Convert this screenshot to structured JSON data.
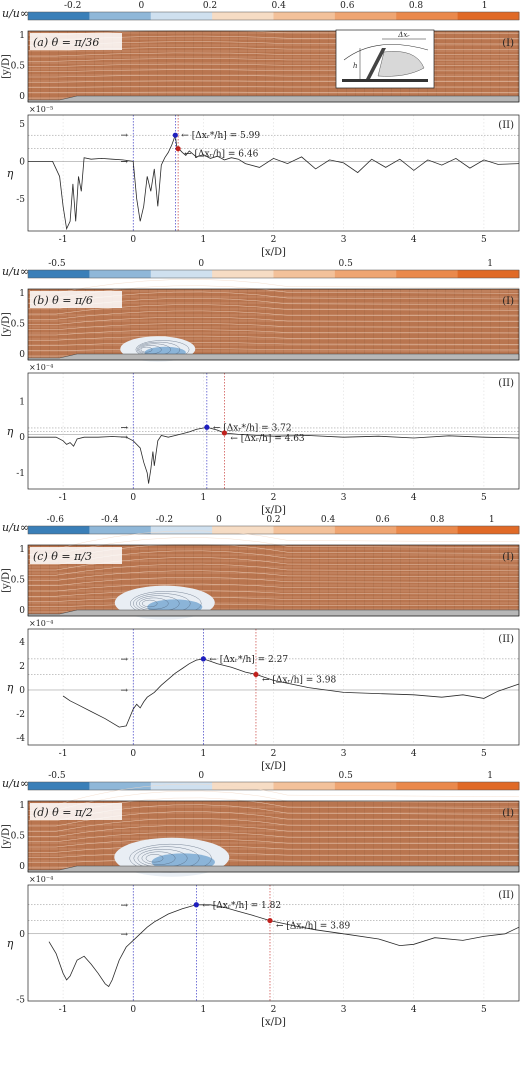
{
  "colorbar_label": "u/u∞",
  "axis_labels": {
    "flow_y": "[y/D]",
    "eta": "η",
    "x": "[x/D]"
  },
  "panel_tags": {
    "top": "(I)",
    "bottom": "(II)"
  },
  "inset_labels": {
    "dx": "Δxᵣ",
    "h": "h"
  },
  "x_ticks": [
    "-1",
    "0",
    "1",
    "2",
    "3",
    "4",
    "5"
  ],
  "flow_y_ticks": [
    "0",
    "0.5",
    "1"
  ],
  "colors": {
    "flow_fill": "#b9754f",
    "ramp": [
      "#3a7fb8",
      "#8fb7d8",
      "#cfe0ef",
      "#f6dcc4",
      "#f3c19a",
      "#efa572",
      "#ea894c",
      "#e06a27"
    ],
    "blue_marker": "#1f1fbf",
    "red_marker": "#c0201c"
  },
  "chart_data": [
    {
      "type": "line",
      "panel": "a",
      "title": "(a) θ = π/36",
      "colorbar_ticks": [
        {
          "label": "-0.2",
          "value": -0.2
        },
        {
          "label": "0",
          "value": 0
        },
        {
          "label": "0.2",
          "value": 0.2
        },
        {
          "label": "0.4",
          "value": 0.4
        },
        {
          "label": "0.6",
          "value": 0.6
        },
        {
          "label": "0.8",
          "value": 0.8
        },
        {
          "label": "1",
          "value": 1
        }
      ],
      "colorbar_range": [
        -0.33,
        1.1
      ],
      "exponent": "×10⁻⁵",
      "y_ticks": [
        {
          "label": "5",
          "value": 5
        },
        {
          "label": "0",
          "value": 0
        },
        {
          "label": "-5",
          "value": -5
        }
      ],
      "ylim": [
        -9.3,
        6.2
      ],
      "xlim": [
        -1.5,
        5.5
      ],
      "hlines": [
        3.5,
        1.7,
        0
      ],
      "blue": {
        "x": 0.6,
        "y": 3.5,
        "label": "[Δxᵣ*/h] = 5.99"
      },
      "red": {
        "x": 0.64,
        "y": 1.7,
        "label": "[Δxᵣ/h] = 6.46"
      },
      "series": [
        {
          "x": [
            -1.5,
            -1.15,
            -1.05,
            -1.0,
            -0.95,
            -0.9,
            -0.86,
            -0.82,
            -0.78,
            -0.74,
            -0.7,
            -0.6,
            -0.45,
            -0.3,
            -0.15,
            0.0,
            0.05,
            0.1,
            0.15,
            0.2,
            0.25,
            0.3,
            0.35,
            0.4,
            0.45,
            0.5,
            0.55,
            0.6,
            0.62,
            0.65,
            0.7,
            0.75,
            0.8,
            0.9,
            1.0,
            1.1,
            1.2,
            1.3,
            1.4,
            1.5,
            1.6,
            1.8,
            2.0,
            2.2,
            2.4,
            2.6,
            2.8,
            3.0,
            3.2,
            3.4,
            3.6,
            3.8,
            4.0,
            4.2,
            4.4,
            4.6,
            4.8,
            5.0,
            5.2,
            5.5
          ],
          "y": [
            0,
            0,
            -2,
            -6,
            -9,
            -8,
            -3,
            -8,
            -2,
            -4,
            0.5,
            0.3,
            0.4,
            0.3,
            0.2,
            0,
            -5,
            -8,
            -6,
            -2,
            -4,
            -1,
            -6,
            -0.5,
            0.5,
            1.2,
            2.2,
            3.5,
            2.0,
            1.7,
            1.2,
            0.8,
            1.4,
            0.6,
            0.9,
            0.4,
            0.7,
            0.2,
            0.5,
            0.3,
            -0.3,
            -0.8,
            0.4,
            -0.3,
            0.6,
            -1.0,
            0.2,
            -0.2,
            -1.5,
            0.3,
            -0.8,
            0.3,
            -1.2,
            0.2,
            -0.5,
            0.4,
            -0.9,
            0.2,
            -0.4,
            -0.3
          ]
        }
      ]
    },
    {
      "type": "line",
      "panel": "b",
      "title": "(b) θ = π/6",
      "colorbar_ticks": [
        {
          "label": "-0.5",
          "value": -0.5
        },
        {
          "label": "0",
          "value": 0
        },
        {
          "label": "0.5",
          "value": 0.5
        },
        {
          "label": "1",
          "value": 1
        }
      ],
      "colorbar_range": [
        -0.6,
        1.1
      ],
      "exponent": "×10⁻⁴",
      "y_ticks": [
        {
          "label": "1",
          "value": 1
        },
        {
          "label": "0",
          "value": 0
        },
        {
          "label": "-1",
          "value": -1
        }
      ],
      "ylim": [
        -1.45,
        1.8
      ],
      "xlim": [
        -1.5,
        5.5
      ],
      "hlines": [
        0.26,
        0.16,
        0.08
      ],
      "blue": {
        "x": 1.05,
        "y": 0.28,
        "label": "[Δxᵣ*/h] = 3.72"
      },
      "red": {
        "x": 1.3,
        "y": 0.12,
        "label": "[Δxᵣ/h] = 4.63"
      },
      "series": [
        {
          "x": [
            -1.5,
            -1.1,
            -1.0,
            -0.95,
            -0.9,
            -0.85,
            -0.8,
            -0.7,
            -0.5,
            -0.3,
            -0.1,
            0.0,
            0.1,
            0.15,
            0.2,
            0.22,
            0.25,
            0.28,
            0.3,
            0.35,
            0.4,
            0.5,
            0.6,
            0.7,
            0.8,
            0.9,
            1.0,
            1.05,
            1.2,
            1.3,
            1.5,
            1.8,
            2.0,
            2.5,
            3.0,
            3.5,
            4.0,
            4.5,
            5.0,
            5.5
          ],
          "y": [
            0,
            0,
            -0.1,
            -0.2,
            -0.15,
            -0.25,
            -0.05,
            0,
            0,
            0.02,
            0,
            -0.1,
            -0.3,
            -0.7,
            -1.0,
            -1.3,
            -0.9,
            -0.4,
            -0.8,
            -0.1,
            0.05,
            0.0,
            0.05,
            0.1,
            0.15,
            0.22,
            0.26,
            0.28,
            0.2,
            0.12,
            0.08,
            0.05,
            0.03,
            0.05,
            0.0,
            0.03,
            -0.02,
            0.04,
            0.0,
            -0.02
          ]
        }
      ]
    },
    {
      "type": "line",
      "panel": "c",
      "title": "(c) θ = π/3",
      "colorbar_ticks": [
        {
          "label": "-0.6",
          "value": -0.6
        },
        {
          "label": "-0.4",
          "value": -0.4
        },
        {
          "label": "-0.2",
          "value": -0.2
        },
        {
          "label": "0",
          "value": 0
        },
        {
          "label": "0.2",
          "value": 0.2
        },
        {
          "label": "0.4",
          "value": 0.4
        },
        {
          "label": "0.6",
          "value": 0.6
        },
        {
          "label": "0.8",
          "value": 0.8
        },
        {
          "label": "1",
          "value": 1
        }
      ],
      "colorbar_range": [
        -0.7,
        1.1
      ],
      "exponent": "×10⁻⁴",
      "y_ticks": [
        {
          "label": "4",
          "value": 4
        },
        {
          "label": "2",
          "value": 2
        },
        {
          "label": "0",
          "value": 0
        },
        {
          "label": "-2",
          "value": -2
        },
        {
          "label": "-4",
          "value": -4
        }
      ],
      "ylim": [
        -4.6,
        5.1
      ],
      "xlim": [
        -1.5,
        5.5
      ],
      "hlines": [
        2.6,
        1.3,
        0
      ],
      "blue": {
        "x": 1.0,
        "y": 2.6,
        "label": "[Δxᵣ*/h] = 2.27"
      },
      "red": {
        "x": 1.75,
        "y": 1.3,
        "label": "[Δxᵣ/h] = 3.98"
      },
      "series": [
        {
          "x": [
            -1.5,
            -1.0,
            -0.9,
            -0.8,
            -0.6,
            -0.4,
            -0.2,
            -0.1,
            0.0,
            0.05,
            0.1,
            0.15,
            0.2,
            0.3,
            0.4,
            0.5,
            0.6,
            0.7,
            0.8,
            0.9,
            1.0,
            1.1,
            1.2,
            1.4,
            1.6,
            1.75,
            2.0,
            2.5,
            3.0,
            3.5,
            4.0,
            4.4,
            4.7,
            5.0,
            5.2,
            5.5
          ],
          "y": [
            null,
            -0.5,
            -0.9,
            -1.2,
            -1.8,
            -2.4,
            -3.1,
            -3.0,
            -1.6,
            -1.2,
            -1.5,
            -1.0,
            -0.6,
            -0.2,
            0.4,
            0.9,
            1.4,
            1.8,
            2.2,
            2.5,
            2.6,
            2.4,
            2.2,
            1.9,
            1.5,
            1.3,
            0.8,
            0.2,
            -0.2,
            -0.3,
            -0.4,
            -0.6,
            -0.4,
            -0.7,
            -0.1,
            0.5
          ]
        }
      ]
    },
    {
      "type": "line",
      "panel": "d",
      "title": "(d) θ = π/2",
      "colorbar_ticks": [
        {
          "label": "-0.5",
          "value": -0.5
        },
        {
          "label": "0",
          "value": 0
        },
        {
          "label": "0.5",
          "value": 0.5
        },
        {
          "label": "1",
          "value": 1
        }
      ],
      "colorbar_range": [
        -0.6,
        1.1
      ],
      "exponent": "×10⁻⁴",
      "y_ticks": [
        {
          "label": "0",
          "value": 0
        },
        {
          "label": "-5",
          "value": -5
        }
      ],
      "ylim": [
        -5.1,
        3.7
      ],
      "xlim": [
        -1.5,
        5.5
      ],
      "hlines": [
        2.2,
        1.0,
        0
      ],
      "blue": {
        "x": 0.9,
        "y": 2.2,
        "label": "[Δxᵣ*/h] = 1.82"
      },
      "red": {
        "x": 1.95,
        "y": 1.0,
        "label": "[Δxᵣ/h] = 3.89"
      },
      "series": [
        {
          "x": [
            -1.5,
            -1.2,
            -1.1,
            -1.0,
            -0.95,
            -0.9,
            -0.8,
            -0.7,
            -0.6,
            -0.5,
            -0.4,
            -0.35,
            -0.3,
            -0.2,
            -0.1,
            0.0,
            0.1,
            0.2,
            0.3,
            0.5,
            0.7,
            0.9,
            1.1,
            1.3,
            1.5,
            1.7,
            1.95,
            2.3,
            2.6,
            3.0,
            3.5,
            3.8,
            4.0,
            4.3,
            4.7,
            5.0,
            5.3,
            5.5
          ],
          "y": [
            null,
            -0.6,
            -1.5,
            -3.0,
            -3.5,
            -3.2,
            -2.0,
            -1.7,
            -2.3,
            -3.0,
            -3.8,
            -4.0,
            -3.5,
            -2.0,
            -1.0,
            -0.5,
            0.0,
            0.5,
            0.9,
            1.5,
            1.9,
            2.2,
            2.2,
            2.0,
            1.7,
            1.4,
            1.0,
            0.6,
            0.3,
            0.0,
            -0.4,
            -0.9,
            -0.8,
            -0.3,
            -0.5,
            -0.2,
            0.0,
            0.5
          ]
        }
      ]
    }
  ]
}
